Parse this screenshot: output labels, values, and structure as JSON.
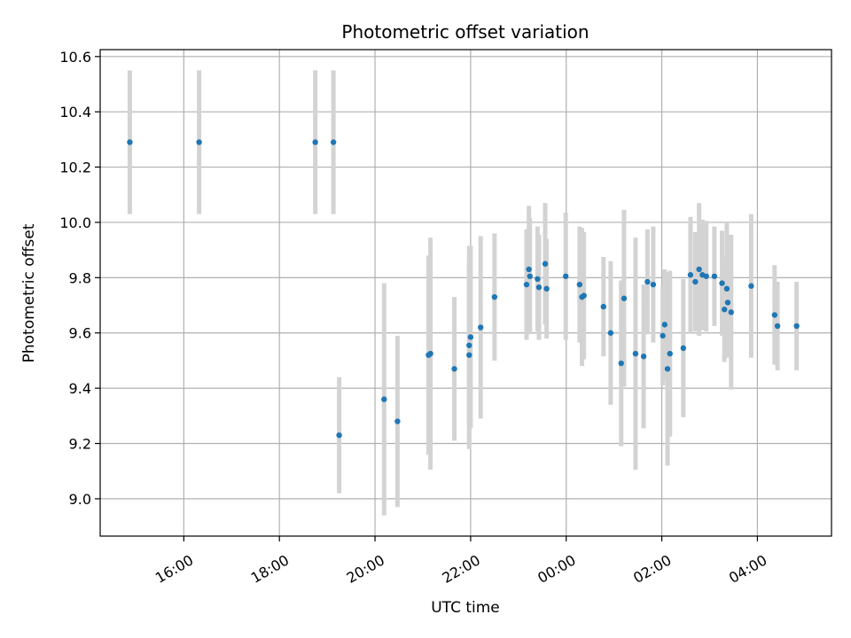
{
  "chart_data": {
    "type": "scatter",
    "title": "Photometric offset variation",
    "xlabel": "UTC time",
    "ylabel": "Photometric offset",
    "x_unit": "hours since 00:00 UTC",
    "xlim": [
      -9.75,
      5.55
    ],
    "ylim": [
      8.865,
      10.625
    ],
    "x_ticks": [
      {
        "value": -8,
        "label": "16:00"
      },
      {
        "value": -6,
        "label": "18:00"
      },
      {
        "value": -4,
        "label": "20:00"
      },
      {
        "value": -2,
        "label": "22:00"
      },
      {
        "value": 0,
        "label": "00:00"
      },
      {
        "value": 2,
        "label": "02:00"
      },
      {
        "value": 4,
        "label": "04:00"
      }
    ],
    "y_ticks": [
      {
        "value": 9.0,
        "label": "9.0"
      },
      {
        "value": 9.2,
        "label": "9.2"
      },
      {
        "value": 9.4,
        "label": "9.4"
      },
      {
        "value": 9.6,
        "label": "9.6"
      },
      {
        "value": 9.8,
        "label": "9.8"
      },
      {
        "value": 10.0,
        "label": "10.0"
      },
      {
        "value": 10.2,
        "label": "10.2"
      },
      {
        "value": 10.4,
        "label": "10.4"
      },
      {
        "value": 10.6,
        "label": "10.6"
      }
    ],
    "grid": true,
    "point_color": "#1f77b4",
    "errorbar_color": "#d3d3d3",
    "points": [
      {
        "x": -9.13,
        "y": 10.29,
        "err": 0.26
      },
      {
        "x": -7.68,
        "y": 10.29,
        "err": 0.26
      },
      {
        "x": -5.25,
        "y": 10.29,
        "err": 0.26
      },
      {
        "x": -4.87,
        "y": 10.29,
        "err": 0.26
      },
      {
        "x": -4.75,
        "y": 9.23,
        "err": 0.21
      },
      {
        "x": -3.81,
        "y": 9.36,
        "err": 0.42
      },
      {
        "x": -3.53,
        "y": 9.28,
        "err": 0.31
      },
      {
        "x": -2.88,
        "y": 9.52,
        "err": 0.36
      },
      {
        "x": -2.84,
        "y": 9.525,
        "err": 0.42
      },
      {
        "x": -2.34,
        "y": 9.47,
        "err": 0.26
      },
      {
        "x": -2.03,
        "y": 9.52,
        "err": 0.34
      },
      {
        "x": -2.03,
        "y": 9.555,
        "err": 0.36
      },
      {
        "x": -2.0,
        "y": 9.585,
        "err": 0.33
      },
      {
        "x": -1.79,
        "y": 9.62,
        "err": 0.33
      },
      {
        "x": -1.5,
        "y": 9.73,
        "err": 0.23
      },
      {
        "x": -0.83,
        "y": 9.775,
        "err": 0.2
      },
      {
        "x": -0.78,
        "y": 9.83,
        "err": 0.23
      },
      {
        "x": -0.76,
        "y": 9.805,
        "err": 0.21
      },
      {
        "x": -0.6,
        "y": 9.795,
        "err": 0.19
      },
      {
        "x": -0.57,
        "y": 9.765,
        "err": 0.19
      },
      {
        "x": -0.44,
        "y": 9.85,
        "err": 0.22
      },
      {
        "x": -0.41,
        "y": 9.76,
        "err": 0.18
      },
      {
        "x": -0.01,
        "y": 9.805,
        "err": 0.23
      },
      {
        "x": 0.28,
        "y": 9.775,
        "err": 0.21
      },
      {
        "x": 0.33,
        "y": 9.73,
        "err": 0.25
      },
      {
        "x": 0.37,
        "y": 9.735,
        "err": 0.23
      },
      {
        "x": 0.78,
        "y": 9.695,
        "err": 0.18
      },
      {
        "x": 0.93,
        "y": 9.6,
        "err": 0.26
      },
      {
        "x": 1.15,
        "y": 9.49,
        "err": 0.3
      },
      {
        "x": 1.21,
        "y": 9.725,
        "err": 0.32
      },
      {
        "x": 1.45,
        "y": 9.525,
        "err": 0.42
      },
      {
        "x": 1.62,
        "y": 9.515,
        "err": 0.26
      },
      {
        "x": 1.7,
        "y": 9.785,
        "err": 0.19
      },
      {
        "x": 1.82,
        "y": 9.775,
        "err": 0.21
      },
      {
        "x": 2.02,
        "y": 9.59,
        "err": 0.18
      },
      {
        "x": 2.06,
        "y": 9.63,
        "err": 0.2
      },
      {
        "x": 2.12,
        "y": 9.47,
        "err": 0.35
      },
      {
        "x": 2.17,
        "y": 9.525,
        "err": 0.3
      },
      {
        "x": 2.45,
        "y": 9.545,
        "err": 0.25
      },
      {
        "x": 2.6,
        "y": 9.81,
        "err": 0.21
      },
      {
        "x": 2.7,
        "y": 9.785,
        "err": 0.18
      },
      {
        "x": 2.78,
        "y": 9.83,
        "err": 0.24
      },
      {
        "x": 2.85,
        "y": 9.81,
        "err": 0.2
      },
      {
        "x": 2.93,
        "y": 9.805,
        "err": 0.2
      },
      {
        "x": 3.1,
        "y": 9.805,
        "err": 0.18
      },
      {
        "x": 3.26,
        "y": 9.78,
        "err": 0.19
      },
      {
        "x": 3.31,
        "y": 9.685,
        "err": 0.19
      },
      {
        "x": 3.36,
        "y": 9.76,
        "err": 0.24
      },
      {
        "x": 3.38,
        "y": 9.71,
        "err": 0.2
      },
      {
        "x": 3.45,
        "y": 9.675,
        "err": 0.28
      },
      {
        "x": 3.87,
        "y": 9.77,
        "err": 0.26
      },
      {
        "x": 4.36,
        "y": 9.665,
        "err": 0.18
      },
      {
        "x": 4.42,
        "y": 9.625,
        "err": 0.16
      },
      {
        "x": 4.82,
        "y": 9.625,
        "err": 0.16
      }
    ]
  }
}
